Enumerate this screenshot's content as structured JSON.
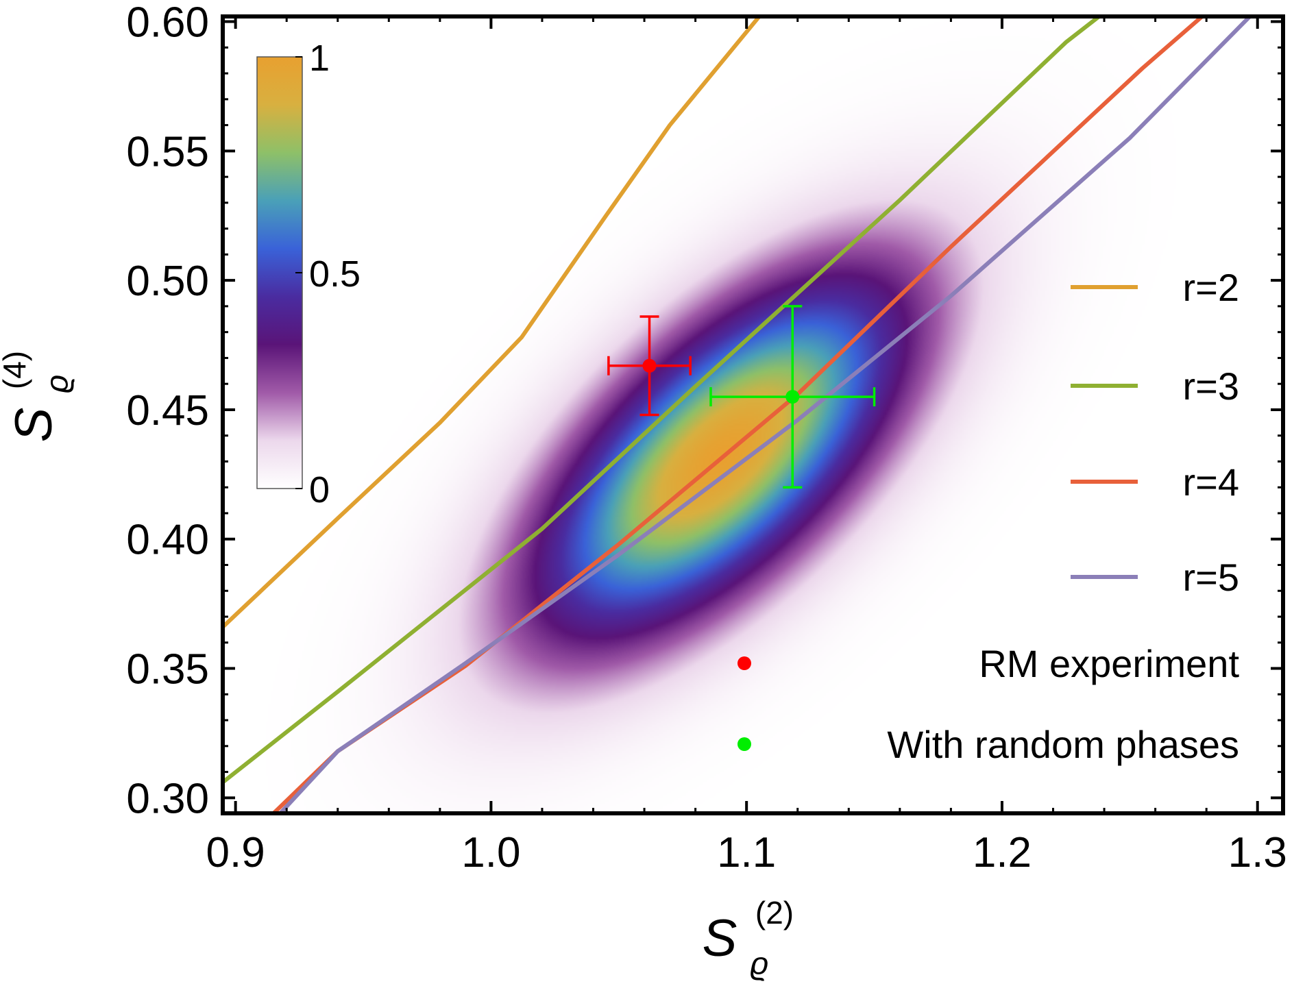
{
  "chart_data": {
    "type": "line",
    "xlabel": {
      "symbol": "S",
      "subscript": "ϱ",
      "superscript": "(2)"
    },
    "ylabel": {
      "symbol": "S",
      "subscript": "ϱ",
      "superscript": "(4)"
    },
    "xlim": [
      0.895,
      1.31
    ],
    "ylim": [
      0.294,
      0.602
    ],
    "xticks": [
      0.9,
      1.0,
      1.1,
      1.2,
      1.3
    ],
    "xtick_labels": [
      "0.9",
      "1.0",
      "1.1",
      "1.2",
      "1.3"
    ],
    "yticks": [
      0.3,
      0.35,
      0.4,
      0.45,
      0.5,
      0.55,
      0.6
    ],
    "ytick_labels": [
      "0.30",
      "0.35",
      "0.40",
      "0.45",
      "0.50",
      "0.55",
      "0.60"
    ],
    "series": [
      {
        "name": "r=2",
        "color": "#e0a030",
        "x": [
          0.895,
          0.94,
          0.98,
          1.012,
          1.045,
          1.07,
          1.105
        ],
        "y": [
          0.366,
          0.408,
          0.445,
          0.478,
          0.525,
          0.56,
          0.602
        ]
      },
      {
        "name": "r=3",
        "color": "#8fb032",
        "x": [
          0.895,
          0.94,
          1.02,
          1.08,
          1.16,
          1.225,
          1.238
        ],
        "y": [
          0.306,
          0.341,
          0.404,
          0.459,
          0.531,
          0.592,
          0.602
        ]
      },
      {
        "name": "r=4",
        "color": "#e8603a",
        "x": [
          0.895,
          0.94,
          0.99,
          1.05,
          1.12,
          1.18,
          1.255,
          1.29
        ],
        "y": [
          0.275,
          0.318,
          0.351,
          0.398,
          0.456,
          0.513,
          0.582,
          0.612
        ]
      },
      {
        "name": "r=5",
        "color": "#8b7fb8",
        "x": [
          0.895,
          0.94,
          0.99,
          1.05,
          1.12,
          1.18,
          1.25,
          1.3
        ],
        "y": [
          0.27,
          0.318,
          0.352,
          0.394,
          0.446,
          0.494,
          0.555,
          0.605
        ]
      }
    ],
    "points": [
      {
        "name": "RM experiment",
        "color": "#ff0000",
        "x": 1.062,
        "y": 0.467,
        "xerr": 0.016,
        "yerr": 0.019
      },
      {
        "name": "With random phases",
        "color": "#00ee00",
        "x": 1.118,
        "y": 0.455,
        "xerr": 0.032,
        "yerr": 0.035
      }
    ],
    "density": {
      "center": [
        1.09,
        0.432
      ],
      "direction": [
        0.0728,
        0.069
      ],
      "sigma_major": 0.62,
      "sigma_minor": 0.28,
      "peak": 1.0
    },
    "colorbar": {
      "range": [
        0,
        1
      ],
      "tick_values": [
        0,
        0.5,
        1
      ],
      "tick_labels": [
        "0",
        "0.5",
        "1"
      ],
      "stops": [
        "#ffffff",
        "#ecd8ec",
        "#a05aa8",
        "#5a1478",
        "#4a2ca0",
        "#3a62d8",
        "#4aa0b8",
        "#8ec068",
        "#d8b040",
        "#e8a030"
      ]
    },
    "legend": {
      "position": "right"
    }
  }
}
